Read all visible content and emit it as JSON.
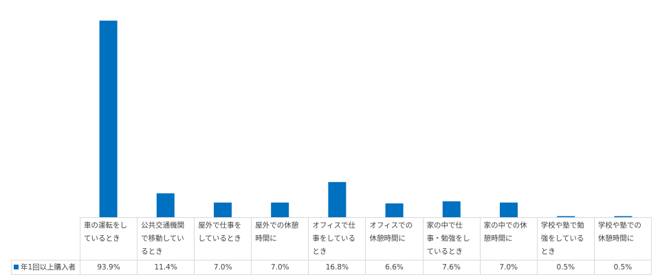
{
  "chart_data": {
    "type": "bar",
    "categories": [
      "車の運転をしているとき",
      "公共交通機関で移動しているとき",
      "屋外で仕事をしているとき",
      "屋外での休憩時間に",
      "オフィスで仕事をしているとき",
      "オフィスでの休憩時間に",
      "家の中で仕事・勉強をしているとき",
      "家の中での休憩時間に",
      "学校や塾で勉強をしているとき",
      "学校や塾での休憩時間に"
    ],
    "series": [
      {
        "name": "年1回以上購入者",
        "color": "#0070c0",
        "values": [
          93.9,
          11.4,
          7.0,
          7.0,
          16.8,
          6.6,
          7.6,
          7.0,
          0.5,
          0.5
        ],
        "value_labels": [
          "93.9%",
          "11.4%",
          "7.0%",
          "7.0%",
          "16.8%",
          "6.6%",
          "7.6%",
          "7.0%",
          "0.5%",
          "0.5%"
        ]
      }
    ]
  }
}
